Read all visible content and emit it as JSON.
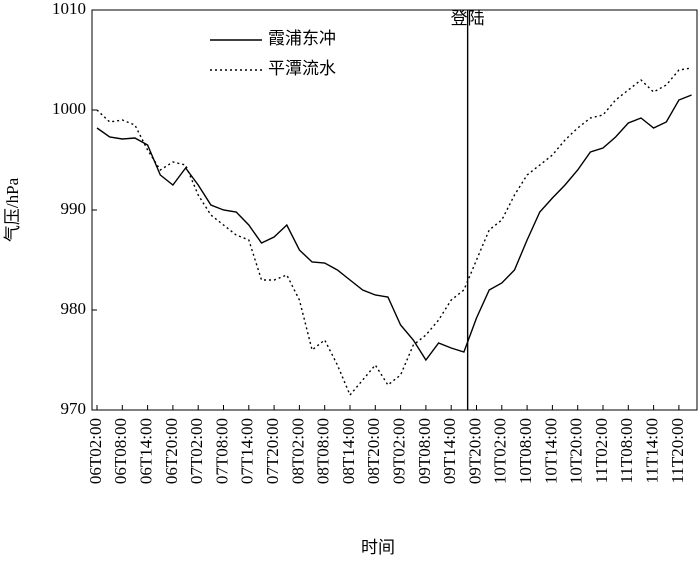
{
  "chart_data": {
    "type": "line",
    "y_label": "气压/hPa",
    "x_label": "时间",
    "categories": [
      "06T02:00",
      null,
      "06T08:00",
      null,
      "06T14:00",
      null,
      "06T20:00",
      null,
      "07T02:00",
      null,
      "07T08:00",
      null,
      "07T14:00",
      null,
      "07T20:00",
      null,
      "08T02:00",
      null,
      "08T08:00",
      null,
      "08T14:00",
      null,
      "08T20:00",
      null,
      "09T02:00",
      null,
      "09T08:00",
      null,
      "09T14:00",
      null,
      "09T20:00",
      null,
      "10T02:00",
      null,
      "10T08:00",
      null,
      "10T14:00",
      null,
      "10T20:00",
      null,
      "11T02:00",
      null,
      "11T08:00",
      null,
      "11T14:00",
      null,
      "11T20:00",
      null
    ],
    "series": [
      {
        "name": "霞浦东冲",
        "color": "#000000",
        "dash": "solid",
        "values": [
          998.2,
          997.3,
          997.1,
          997.2,
          996.5,
          993.5,
          992.5,
          994.2,
          992.5,
          990.5,
          990,
          989.8,
          988.5,
          986.7,
          987.3,
          988.5,
          986,
          984.8,
          984.7,
          984,
          983,
          982,
          981.5,
          981.3,
          978.5,
          977,
          975,
          976.7,
          976.2,
          975.8,
          979.2,
          982,
          982.7,
          984,
          987,
          989.8,
          991.2,
          992.5,
          994,
          995.8,
          996.2,
          997.3,
          998.7,
          999.2,
          998.2,
          998.8,
          1001,
          1001.5
        ]
      },
      {
        "name": "平潭流水",
        "color": "#000000",
        "dash": "dotted",
        "values": [
          1000,
          998.8,
          999,
          998.5,
          996,
          994,
          994.8,
          994.5,
          991.5,
          989.5,
          988.5,
          987.5,
          987,
          983,
          983,
          983.5,
          981,
          976,
          977,
          974.5,
          971.5,
          973,
          974.5,
          972.5,
          973.5,
          976.5,
          977.5,
          979,
          981,
          982,
          985,
          988,
          989,
          991.5,
          993.5,
          994.5,
          995.5,
          997,
          998.2,
          999.2,
          999.5,
          1001,
          1002,
          1003,
          1001.8,
          1002.5,
          1004,
          1004.2
        ]
      }
    ],
    "annotations": [
      {
        "text": "登陆",
        "x": 29.3
      }
    ],
    "ylim": [
      970,
      1010
    ],
    "yticks": [
      970,
      980,
      990,
      1000,
      1010
    ],
    "legend": "upper left"
  }
}
